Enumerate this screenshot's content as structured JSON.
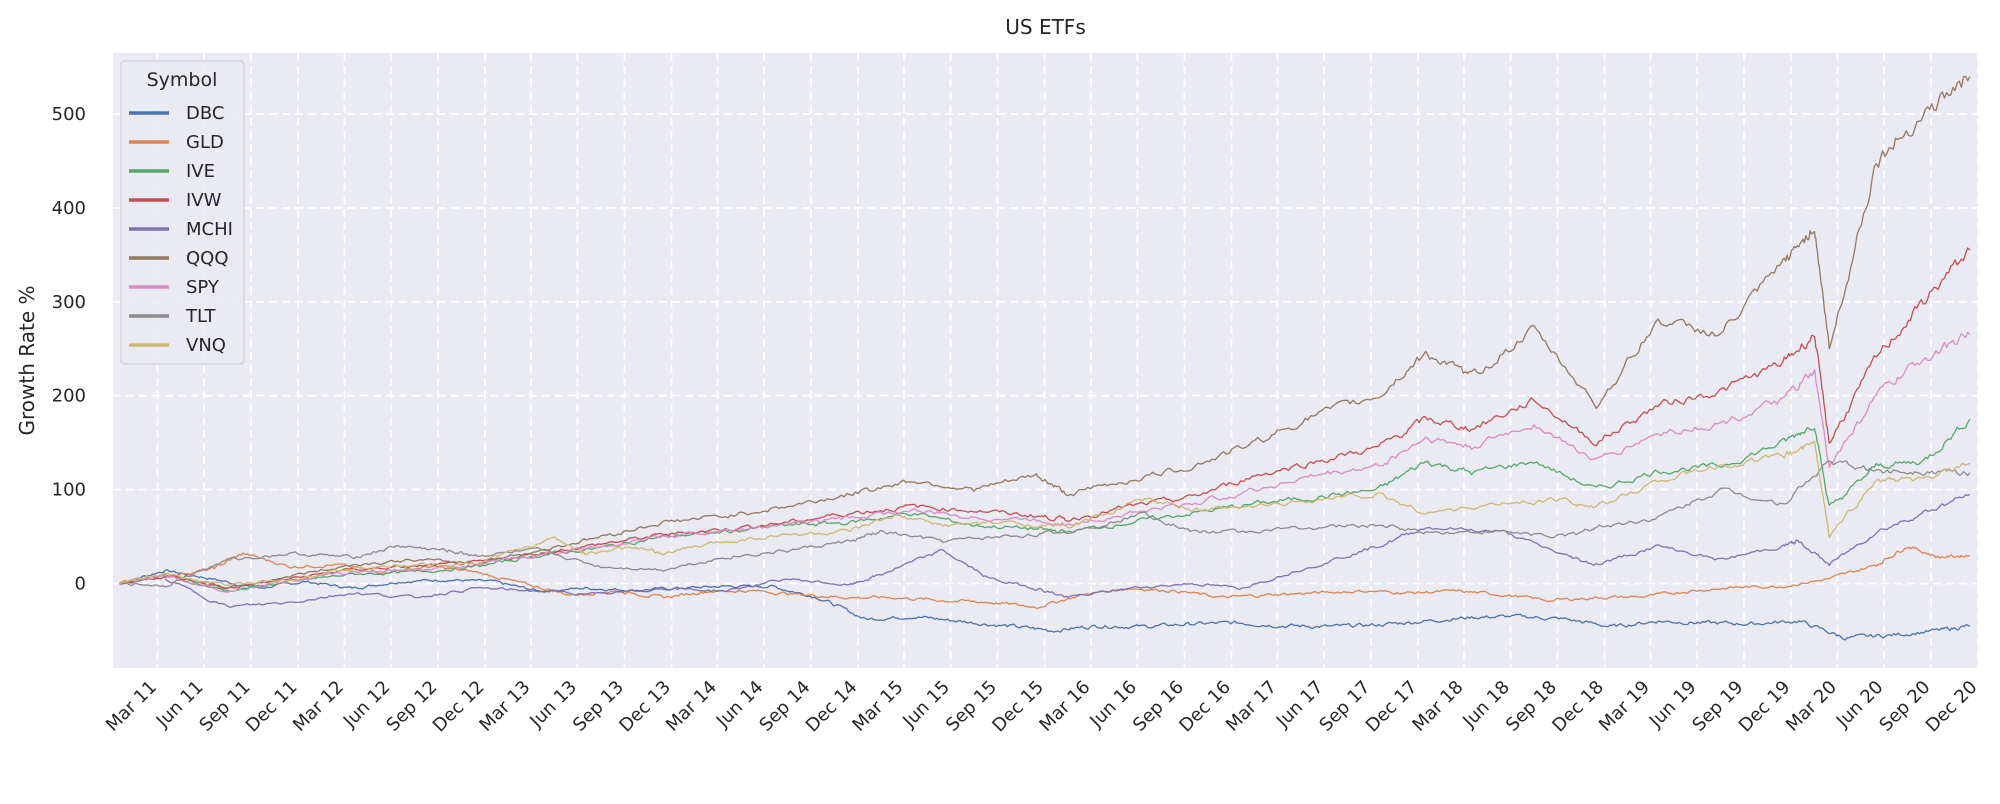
{
  "chart_data": {
    "type": "line",
    "title": "US ETFs",
    "xlabel": "",
    "ylabel": "Growth Rate %",
    "ylim": [
      -90,
      565
    ],
    "xlim": [
      "2011-01-03",
      "2020-12-31"
    ],
    "yticks": [
      0,
      100,
      200,
      300,
      400,
      500
    ],
    "xticks": [
      "Mar 11",
      "Jun 11",
      "Sep 11",
      "Dec 11",
      "Mar 12",
      "Jun 12",
      "Sep 12",
      "Dec 12",
      "Mar 13",
      "Jun 13",
      "Sep 13",
      "Dec 13",
      "Mar 14",
      "Jun 14",
      "Sep 14",
      "Dec 14",
      "Mar 15",
      "Jun 15",
      "Sep 15",
      "Dec 15",
      "Mar 16",
      "Jun 16",
      "Sep 16",
      "Dec 16",
      "Mar 17",
      "Jun 17",
      "Sep 17",
      "Dec 17",
      "Mar 18",
      "Jun 18",
      "Sep 18",
      "Dec 18",
      "Mar 19",
      "Jun 19",
      "Sep 19",
      "Dec 19",
      "Mar 20",
      "Jun 20",
      "Sep 20",
      "Dec 20"
    ],
    "grid": true,
    "legend": {
      "title": "Symbol",
      "placement": "top-left"
    },
    "series": [
      {
        "name": "DBC",
        "color": "#4c72b0",
        "x": [
          "2011-01",
          "2011-04",
          "2011-07",
          "2011-10",
          "2012-01",
          "2012-04",
          "2012-07",
          "2012-10",
          "2013-01",
          "2013-04",
          "2013-07",
          "2013-10",
          "2014-01",
          "2014-04",
          "2014-07",
          "2014-10",
          "2015-01",
          "2015-04",
          "2015-07",
          "2015-10",
          "2016-01",
          "2016-04",
          "2016-07",
          "2016-10",
          "2017-01",
          "2017-04",
          "2017-07",
          "2017-10",
          "2018-01",
          "2018-04",
          "2018-07",
          "2018-10",
          "2019-01",
          "2019-04",
          "2019-07",
          "2019-10",
          "2020-01",
          "2020-04",
          "2020-07",
          "2020-10",
          "2020-12"
        ],
        "y": [
          0,
          14,
          5,
          -5,
          2,
          -5,
          2,
          4,
          2,
          -8,
          -5,
          -7,
          -5,
          -3,
          -3,
          -15,
          -38,
          -35,
          -40,
          -45,
          -50,
          -45,
          -46,
          -43,
          -42,
          -45,
          -46,
          -44,
          -40,
          -36,
          -35,
          -38,
          -46,
          -40,
          -42,
          -43,
          -40,
          -58,
          -55,
          -50,
          -45
        ]
      },
      {
        "name": "GLD",
        "color": "#dd8452",
        "x": [
          "2011-01",
          "2011-04",
          "2011-07",
          "2011-09",
          "2011-12",
          "2012-03",
          "2012-06",
          "2012-09",
          "2012-12",
          "2013-03",
          "2013-06",
          "2013-09",
          "2013-12",
          "2014-03",
          "2014-06",
          "2014-09",
          "2014-12",
          "2015-03",
          "2015-06",
          "2015-09",
          "2015-12",
          "2016-03",
          "2016-06",
          "2016-09",
          "2016-12",
          "2017-03",
          "2017-06",
          "2017-09",
          "2017-12",
          "2018-03",
          "2018-06",
          "2018-09",
          "2018-12",
          "2019-03",
          "2019-06",
          "2019-09",
          "2019-12",
          "2020-03",
          "2020-06",
          "2020-08",
          "2020-10",
          "2020-12"
        ],
        "y": [
          0,
          8,
          15,
          32,
          18,
          20,
          12,
          18,
          12,
          0,
          -12,
          -8,
          -15,
          -8,
          -8,
          -12,
          -15,
          -15,
          -18,
          -20,
          -25,
          -12,
          -5,
          -8,
          -15,
          -12,
          -10,
          -8,
          -10,
          -8,
          -12,
          -18,
          -15,
          -14,
          -8,
          -4,
          -3,
          5,
          20,
          40,
          28,
          30
        ]
      },
      {
        "name": "IVE",
        "color": "#55a868",
        "x": [
          "2011-01",
          "2011-04",
          "2011-08",
          "2011-12",
          "2012-04",
          "2012-08",
          "2012-12",
          "2013-04",
          "2013-08",
          "2013-12",
          "2014-04",
          "2014-08",
          "2014-12",
          "2015-04",
          "2015-08",
          "2015-12",
          "2016-02",
          "2016-06",
          "2016-10",
          "2017-02",
          "2017-06",
          "2017-10",
          "2018-01",
          "2018-04",
          "2018-08",
          "2018-12",
          "2019-04",
          "2019-08",
          "2019-12",
          "2020-02",
          "2020-03",
          "2020-06",
          "2020-09",
          "2020-12"
        ],
        "y": [
          0,
          8,
          -8,
          2,
          10,
          12,
          18,
          30,
          38,
          50,
          55,
          62,
          65,
          75,
          62,
          58,
          55,
          65,
          75,
          85,
          92,
          100,
          130,
          118,
          130,
          100,
          120,
          125,
          150,
          170,
          80,
          125,
          130,
          175
        ]
      },
      {
        "name": "IVW",
        "color": "#c44e52",
        "x": [
          "2011-01",
          "2011-04",
          "2011-08",
          "2011-12",
          "2012-04",
          "2012-08",
          "2012-12",
          "2013-04",
          "2013-08",
          "2013-12",
          "2014-04",
          "2014-08",
          "2014-12",
          "2015-04",
          "2015-08",
          "2015-12",
          "2016-02",
          "2016-06",
          "2016-10",
          "2017-02",
          "2017-06",
          "2017-10",
          "2018-01",
          "2018-04",
          "2018-08",
          "2018-12",
          "2019-04",
          "2019-08",
          "2019-12",
          "2020-02",
          "2020-03",
          "2020-06",
          "2020-09",
          "2020-12"
        ],
        "y": [
          0,
          8,
          -5,
          5,
          15,
          18,
          22,
          32,
          42,
          52,
          58,
          65,
          75,
          82,
          78,
          72,
          68,
          82,
          92,
          115,
          130,
          145,
          175,
          165,
          195,
          150,
          190,
          205,
          235,
          265,
          150,
          240,
          300,
          355
        ]
      },
      {
        "name": "MCHI",
        "color": "#8172b3",
        "x": [
          "2011-04",
          "2011-08",
          "2011-12",
          "2012-04",
          "2012-08",
          "2012-12",
          "2013-04",
          "2013-08",
          "2013-12",
          "2014-04",
          "2014-08",
          "2014-12",
          "2015-02",
          "2015-06",
          "2015-09",
          "2015-12",
          "2016-02",
          "2016-06",
          "2016-10",
          "2017-01",
          "2017-06",
          "2017-10",
          "2018-01",
          "2018-06",
          "2018-10",
          "2018-12",
          "2019-04",
          "2019-08",
          "2019-12",
          "2020-01",
          "2020-03",
          "2020-06",
          "2020-09",
          "2020-12"
        ],
        "y": [
          5,
          -25,
          -20,
          -10,
          -15,
          -5,
          -8,
          -12,
          -5,
          -8,
          5,
          -2,
          10,
          35,
          5,
          -5,
          -15,
          -5,
          0,
          -5,
          20,
          40,
          60,
          55,
          30,
          20,
          40,
          25,
          40,
          45,
          20,
          55,
          75,
          95
        ]
      },
      {
        "name": "QQQ",
        "color": "#937860",
        "x": [
          "2011-01",
          "2011-04",
          "2011-08",
          "2011-12",
          "2012-04",
          "2012-08",
          "2012-12",
          "2013-04",
          "2013-08",
          "2013-12",
          "2014-04",
          "2014-08",
          "2014-12",
          "2015-04",
          "2015-08",
          "2015-12",
          "2016-02",
          "2016-06",
          "2016-10",
          "2017-02",
          "2017-06",
          "2017-10",
          "2018-01",
          "2018-04",
          "2018-08",
          "2018-12",
          "2019-04",
          "2019-08",
          "2019-12",
          "2020-02",
          "2020-03",
          "2020-06",
          "2020-09",
          "2020-12"
        ],
        "y": [
          0,
          10,
          -5,
          8,
          20,
          25,
          22,
          35,
          50,
          65,
          72,
          82,
          95,
          110,
          100,
          115,
          95,
          110,
          125,
          150,
          180,
          200,
          245,
          220,
          270,
          190,
          280,
          265,
          340,
          380,
          250,
          450,
          500,
          540
        ]
      },
      {
        "name": "SPY",
        "color": "#da8bc3",
        "x": [
          "2011-01",
          "2011-04",
          "2011-08",
          "2011-12",
          "2012-04",
          "2012-08",
          "2012-12",
          "2013-04",
          "2013-08",
          "2013-12",
          "2014-04",
          "2014-08",
          "2014-12",
          "2015-04",
          "2015-08",
          "2015-12",
          "2016-02",
          "2016-06",
          "2016-10",
          "2017-02",
          "2017-06",
          "2017-10",
          "2018-01",
          "2018-04",
          "2018-08",
          "2018-12",
          "2019-04",
          "2019-08",
          "2019-12",
          "2020-02",
          "2020-03",
          "2020-06",
          "2020-09",
          "2020-12"
        ],
        "y": [
          0,
          8,
          -8,
          3,
          12,
          15,
          20,
          30,
          40,
          50,
          56,
          63,
          70,
          78,
          70,
          68,
          62,
          75,
          85,
          100,
          115,
          125,
          155,
          145,
          170,
          130,
          160,
          170,
          195,
          225,
          125,
          200,
          240,
          265
        ]
      },
      {
        "name": "TLT",
        "color": "#8c8c8c",
        "x": [
          "2011-01",
          "2011-04",
          "2011-08",
          "2011-12",
          "2012-04",
          "2012-07",
          "2012-10",
          "2012-12",
          "2013-04",
          "2013-08",
          "2013-12",
          "2014-04",
          "2014-08",
          "2014-12",
          "2015-02",
          "2015-06",
          "2015-10",
          "2016-02",
          "2016-07",
          "2016-10",
          "2017-01",
          "2017-06",
          "2017-10",
          "2018-01",
          "2018-06",
          "2018-10",
          "2018-12",
          "2019-04",
          "2019-08",
          "2019-12",
          "2020-03",
          "2020-06",
          "2020-09",
          "2020-12"
        ],
        "y": [
          0,
          -2,
          25,
          32,
          28,
          40,
          35,
          30,
          35,
          18,
          15,
          28,
          35,
          45,
          55,
          45,
          50,
          55,
          75,
          55,
          55,
          60,
          62,
          55,
          55,
          50,
          60,
          70,
          100,
          85,
          130,
          120,
          120,
          118
        ]
      },
      {
        "name": "VNQ",
        "color": "#ccb974",
        "x": [
          "2011-01",
          "2011-04",
          "2011-08",
          "2011-12",
          "2012-04",
          "2012-08",
          "2012-12",
          "2013-05",
          "2013-07",
          "2013-10",
          "2013-12",
          "2014-04",
          "2014-08",
          "2014-12",
          "2015-03",
          "2015-06",
          "2015-10",
          "2016-02",
          "2016-07",
          "2016-10",
          "2017-01",
          "2017-06",
          "2017-10",
          "2018-01",
          "2018-06",
          "2018-10",
          "2018-12",
          "2019-04",
          "2019-08",
          "2019-12",
          "2020-02",
          "2020-03",
          "2020-06",
          "2020-09",
          "2020-12"
        ],
        "y": [
          0,
          10,
          -2,
          5,
          15,
          20,
          22,
          48,
          32,
          38,
          32,
          45,
          52,
          55,
          72,
          62,
          65,
          60,
          90,
          78,
          80,
          90,
          95,
          75,
          85,
          90,
          80,
          110,
          125,
          135,
          150,
          50,
          110,
          110,
          128
        ]
      }
    ]
  }
}
